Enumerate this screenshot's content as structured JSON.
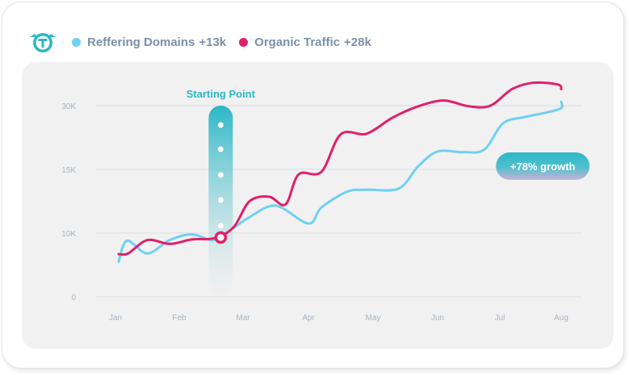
{
  "legend": {
    "series1_label": "Reffering Domains",
    "series1_value": "+13k",
    "series2_label": "Organic Traffic",
    "series2_value": "+28k"
  },
  "colors": {
    "referring": "#6fd0f2",
    "organic": "#e0206a",
    "accent": "#2bb7c6",
    "logo": "#2bb7c6"
  },
  "icons": {
    "logo": "teal-t-badge-logo-icon"
  },
  "chart_data": {
    "type": "line",
    "categories": [
      "Jan",
      "Feb",
      "Mar",
      "Apr",
      "May",
      "Jun",
      "Jul",
      "Aug"
    ],
    "y_tick_labels": [
      "0",
      "10K",
      "15K",
      "30K"
    ],
    "grid": true,
    "series": [
      {
        "name": "Reffering Domains",
        "x": [
          0.05,
          0.18,
          0.5,
          0.85,
          1.2,
          1.55,
          1.85,
          2.1,
          2.5,
          3.0,
          3.2,
          3.6,
          3.9,
          4.4,
          4.7,
          5.0,
          5.4,
          5.75,
          6.05,
          6.4,
          6.75,
          7.05,
          7.3
        ],
        "y": [
          5.5,
          8.8,
          6.8,
          8.9,
          9.8,
          8.9,
          10.8,
          12.5,
          14.3,
          11.5,
          14.0,
          16.5,
          16.8,
          17.0,
          20.5,
          22.8,
          22.7,
          23.1,
          27.2,
          28.2,
          28.9,
          29.6,
          30.6
        ]
      },
      {
        "name": "Organic Traffic",
        "x": [
          0.05,
          0.2,
          0.5,
          0.85,
          1.2,
          1.55,
          1.85,
          2.1,
          2.4,
          2.65,
          2.85,
          3.2,
          3.5,
          3.9,
          4.3,
          4.7,
          5.1,
          5.5,
          5.85,
          6.2,
          6.55,
          6.95,
          7.3
        ],
        "y": [
          6.7,
          6.8,
          8.9,
          8.3,
          9.0,
          9.2,
          10.9,
          15.0,
          15.7,
          14.5,
          19.2,
          19.6,
          25.5,
          25.6,
          28.1,
          29.9,
          30.8,
          29.9,
          30.0,
          32.6,
          33.6,
          33.3,
          32.6
        ]
      }
    ],
    "annotations": [
      {
        "label": "Starting Point",
        "x": 1.65,
        "y": 9.3
      },
      {
        "label": "+78% growth",
        "x": 6.7,
        "y": 20.5
      }
    ]
  }
}
